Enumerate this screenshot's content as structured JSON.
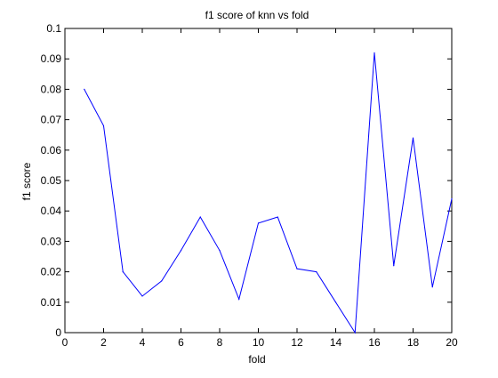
{
  "chart_data": {
    "type": "line",
    "title": "f1 score of knn vs fold",
    "xlabel": "fold",
    "ylabel": "f1 score",
    "xlim": [
      0,
      20
    ],
    "ylim": [
      0,
      0.1
    ],
    "x_ticks": [
      "0",
      "2",
      "4",
      "6",
      "8",
      "10",
      "12",
      "14",
      "16",
      "18",
      "20"
    ],
    "y_ticks": [
      "0",
      "0.01",
      "0.02",
      "0.03",
      "0.04",
      "0.05",
      "0.06",
      "0.07",
      "0.08",
      "0.09",
      "0.1"
    ],
    "grid": false,
    "series": [
      {
        "color": "#0000ff",
        "x": [
          1,
          2,
          3,
          4,
          5,
          6,
          7,
          8,
          9,
          10,
          11,
          12,
          13,
          14,
          15,
          16,
          17,
          18,
          19,
          20
        ],
        "y": [
          0.08,
          0.068,
          0.02,
          0.012,
          0.017,
          0.027,
          0.038,
          0.027,
          0.011,
          0.036,
          0.038,
          0.021,
          0.02,
          0.01,
          0.0,
          0.092,
          0.022,
          0.064,
          0.015,
          0.044
        ]
      }
    ]
  },
  "colors": {
    "line": "#0000ff",
    "axes": "#000000",
    "background": "#ffffff"
  }
}
